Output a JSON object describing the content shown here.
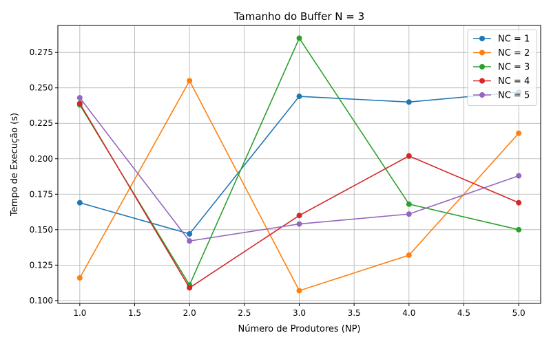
{
  "chart_data": {
    "type": "line",
    "title": "Tamanho do Buffer N = 3",
    "xlabel": "Número de Produtores (NP)",
    "ylabel": "Tempo de Execução (s)",
    "x": [
      1.0,
      2.0,
      3.0,
      4.0,
      5.0
    ],
    "xlim": [
      0.8,
      5.2
    ],
    "ylim": [
      0.098,
      0.294
    ],
    "xticks": [
      1.0,
      1.5,
      2.0,
      2.5,
      3.0,
      3.5,
      4.0,
      4.5,
      5.0
    ],
    "xtick_labels": [
      "1.0",
      "1.5",
      "2.0",
      "2.5",
      "3.0",
      "3.5",
      "4.0",
      "4.5",
      "5.0"
    ],
    "yticks": [
      0.1,
      0.125,
      0.15,
      0.175,
      0.2,
      0.225,
      0.25,
      0.275
    ],
    "ytick_labels": [
      "0.100",
      "0.125",
      "0.150",
      "0.175",
      "0.200",
      "0.225",
      "0.250",
      "0.275"
    ],
    "grid": true,
    "legend_position": "top-right",
    "series": [
      {
        "name": "NC = 1",
        "color": "#1f77b4",
        "values": [
          0.169,
          0.147,
          0.244,
          0.24,
          0.247
        ]
      },
      {
        "name": "NC = 2",
        "color": "#ff7f0e",
        "values": [
          0.116,
          0.255,
          0.107,
          0.132,
          0.218
        ]
      },
      {
        "name": "NC = 3",
        "color": "#2ca02c",
        "values": [
          0.238,
          0.111,
          0.285,
          0.168,
          0.15
        ]
      },
      {
        "name": "NC = 4",
        "color": "#d62728",
        "values": [
          0.239,
          0.109,
          0.16,
          0.202,
          0.169
        ]
      },
      {
        "name": "NC = 5",
        "color": "#9467bd",
        "values": [
          0.243,
          0.142,
          0.154,
          0.161,
          0.188
        ]
      }
    ]
  }
}
